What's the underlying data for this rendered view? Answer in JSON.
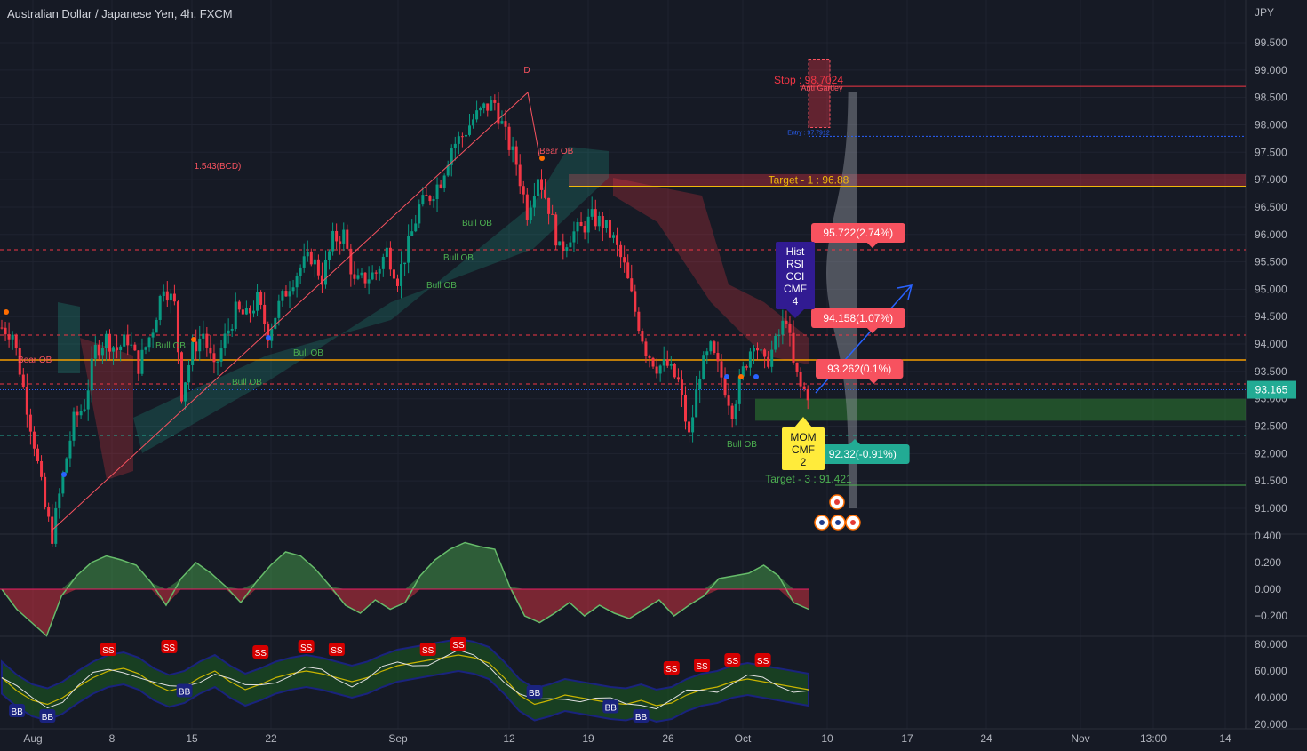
{
  "header": {
    "title": "Australian Dollar / Japanese Yen, 4h, FXCM",
    "currency": "JPY"
  },
  "chart_data": {
    "type": "candlestick",
    "symbol": "AUDJPY",
    "timeframe": "4h",
    "ylim": [
      90.5,
      99.8
    ],
    "y_ticks": [
      "99.500",
      "99.000",
      "98.500",
      "98.000",
      "97.500",
      "97.000",
      "96.500",
      "96.000",
      "95.500",
      "95.000",
      "94.500",
      "94.000",
      "93.500",
      "93.000",
      "92.500",
      "92.000",
      "91.500",
      "91.000"
    ],
    "x_ticks": [
      "Aug",
      "8",
      "15",
      "22",
      "Sep",
      "12",
      "19",
      "26",
      "Oct",
      "10",
      "17",
      "24",
      "Nov",
      "13:00",
      "14"
    ],
    "last_price": "93.165",
    "price_path": [
      [
        0,
        94.3
      ],
      [
        3,
        94.2
      ],
      [
        6,
        93.2
      ],
      [
        9,
        92.2
      ],
      [
        12,
        91.0
      ],
      [
        14,
        90.5
      ],
      [
        17,
        91.6
      ],
      [
        20,
        92.6
      ],
      [
        23,
        92.9
      ],
      [
        26,
        93.9
      ],
      [
        29,
        94.1
      ],
      [
        32,
        93.9
      ],
      [
        35,
        94.1
      ],
      [
        38,
        93.6
      ],
      [
        42,
        94.3
      ],
      [
        45,
        95.1
      ],
      [
        48,
        94.7
      ],
      [
        50,
        93.1
      ],
      [
        53,
        93.9
      ],
      [
        56,
        94.2
      ],
      [
        59,
        93.5
      ],
      [
        62,
        94.1
      ],
      [
        65,
        94.6
      ],
      [
        68,
        94.5
      ],
      [
        71,
        94.8
      ],
      [
        74,
        94.2
      ],
      [
        77,
        94.7
      ],
      [
        80,
        95.1
      ],
      [
        83,
        95.4
      ],
      [
        86,
        95.6
      ],
      [
        89,
        95.2
      ],
      [
        92,
        95.9
      ],
      [
        95,
        96.0
      ],
      [
        98,
        95.1
      ],
      [
        101,
        95.2
      ],
      [
        104,
        95.3
      ],
      [
        107,
        95.7
      ],
      [
        110,
        95.2
      ],
      [
        113,
        95.8
      ],
      [
        116,
        96.5
      ],
      [
        119,
        96.7
      ],
      [
        122,
        97.0
      ],
      [
        125,
        97.6
      ],
      [
        128,
        97.8
      ],
      [
        131,
        98.1
      ],
      [
        134,
        98.3
      ],
      [
        137,
        98.4
      ],
      [
        140,
        97.8
      ],
      [
        143,
        97.3
      ],
      [
        146,
        96.4
      ],
      [
        149,
        97.1
      ],
      [
        152,
        96.5
      ],
      [
        155,
        95.7
      ],
      [
        158,
        96.0
      ],
      [
        161,
        96.1
      ],
      [
        164,
        96.3
      ],
      [
        167,
        96.2
      ],
      [
        170,
        95.9
      ],
      [
        173,
        95.4
      ],
      [
        176,
        94.6
      ],
      [
        179,
        93.9
      ],
      [
        182,
        93.6
      ],
      [
        185,
        93.6
      ],
      [
        188,
        93.3
      ],
      [
        191,
        92.3
      ],
      [
        194,
        93.5
      ],
      [
        197,
        93.9
      ],
      [
        200,
        93.4
      ],
      [
        203,
        92.8
      ],
      [
        206,
        93.5
      ],
      [
        209,
        94.1
      ],
      [
        212,
        93.6
      ],
      [
        215,
        94.0
      ],
      [
        218,
        94.5
      ],
      [
        220,
        93.6
      ],
      [
        222,
        93.2
      ],
      [
        224,
        93.1
      ]
    ],
    "levels": [
      {
        "label": "Stop : 98.7024",
        "value": 98.7024,
        "color": "#f23645"
      },
      {
        "label": "Entry : 97.7912",
        "value": 97.7912,
        "color": "#2962ff"
      },
      {
        "label": "Target - 1 : 96.88",
        "value": 96.88,
        "color": "#f0b90b"
      },
      {
        "label": "Target - 3 : 91.421",
        "value": 91.421,
        "color": "#4caf50"
      }
    ],
    "price_labels": [
      {
        "text": "95.722(2.74%)",
        "value": 95.722,
        "color": "#f7525f"
      },
      {
        "text": "94.158(1.07%)",
        "value": 94.158,
        "color": "#f7525f"
      },
      {
        "text": "93.262(0.1%)",
        "value": 93.262,
        "color": "#f7525f"
      },
      {
        "text": "92.32(-0.91%)",
        "value": 92.32,
        "color": "#22ab94"
      }
    ],
    "annotations": {
      "pattern_point": "D",
      "ratio": "1.543(BCD)",
      "pattern": "Anti Gartley",
      "bear_ob": "Bear OB",
      "bull_ob": "Bull OB",
      "signal_top": [
        "Hist",
        "RSI",
        "CCI",
        "CMF",
        "4"
      ],
      "signal_bottom": [
        "MOM",
        "CMF",
        "2"
      ]
    },
    "oscillator1": {
      "y_ticks": [
        "0.400",
        "0.200",
        "0.000",
        "−0.200"
      ],
      "ylim": [
        -0.35,
        0.42
      ],
      "values": [
        0.0,
        -0.15,
        -0.25,
        -0.35,
        -0.05,
        0.1,
        0.2,
        0.25,
        0.22,
        0.18,
        0.05,
        -0.12,
        0.08,
        0.2,
        0.12,
        0.02,
        -0.1,
        0.05,
        0.18,
        0.28,
        0.25,
        0.15,
        0.02,
        -0.12,
        -0.18,
        -0.08,
        -0.15,
        -0.1,
        0.1,
        0.22,
        0.3,
        0.35,
        0.32,
        0.3,
        0.02,
        -0.2,
        -0.25,
        -0.18,
        -0.1,
        -0.2,
        -0.12,
        -0.18,
        -0.22,
        -0.15,
        -0.08,
        -0.2,
        -0.12,
        -0.05,
        0.08,
        0.1,
        0.12,
        0.18,
        0.1,
        -0.1,
        -0.15
      ]
    },
    "oscillator2": {
      "y_ticks": [
        "80.000",
        "60.000",
        "40.000",
        "20.000"
      ],
      "ylim": [
        18,
        85
      ],
      "values": [
        55,
        45,
        38,
        35,
        40,
        48,
        55,
        60,
        62,
        58,
        50,
        45,
        48,
        55,
        60,
        52,
        46,
        50,
        55,
        58,
        60,
        58,
        55,
        52,
        55,
        60,
        64,
        66,
        68,
        70,
        72,
        70,
        66,
        55,
        42,
        35,
        38,
        42,
        40,
        38,
        36,
        35,
        38,
        34,
        36,
        42,
        46,
        48,
        52,
        54,
        52,
        50,
        48,
        46
      ],
      "tags": [
        {
          "text": "BB",
          "i": 1,
          "v": 30
        },
        {
          "text": "BB",
          "i": 3,
          "v": 26
        },
        {
          "text": "SS",
          "i": 7,
          "v": 76
        },
        {
          "text": "SS",
          "i": 11,
          "v": 78
        },
        {
          "text": "BB",
          "i": 12,
          "v": 45
        },
        {
          "text": "SS",
          "i": 17,
          "v": 74
        },
        {
          "text": "SS",
          "i": 20,
          "v": 78
        },
        {
          "text": "SS",
          "i": 22,
          "v": 76
        },
        {
          "text": "SS",
          "i": 28,
          "v": 76
        },
        {
          "text": "SS",
          "i": 30,
          "v": 80
        },
        {
          "text": "BB",
          "i": 35,
          "v": 44
        },
        {
          "text": "BB",
          "i": 40,
          "v": 33
        },
        {
          "text": "BB",
          "i": 42,
          "v": 26
        },
        {
          "text": "SS",
          "i": 44,
          "v": 62
        },
        {
          "text": "SS",
          "i": 46,
          "v": 64
        },
        {
          "text": "SS",
          "i": 48,
          "v": 68
        },
        {
          "text": "SS",
          "i": 50,
          "v": 68
        }
      ]
    }
  }
}
